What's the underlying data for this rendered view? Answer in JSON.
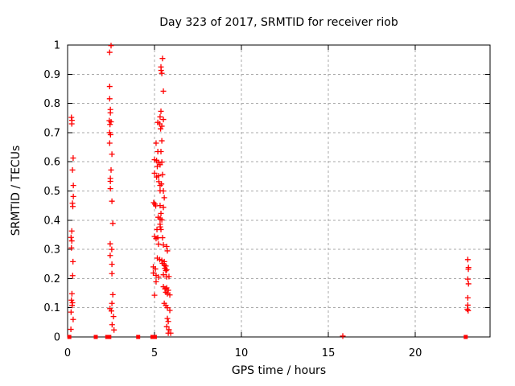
{
  "chart_data": {
    "type": "scatter",
    "title": "Day 323 of 2017, SRMTID for receiver riob",
    "xlabel": "GPS time / hours",
    "ylabel": "SRMTID / TECUs",
    "xlim": [
      0,
      24.3
    ],
    "ylim": [
      0,
      1
    ],
    "xticks": [
      {
        "v": 0,
        "label": "0"
      },
      {
        "v": 5,
        "label": "5"
      },
      {
        "v": 10,
        "label": "10"
      },
      {
        "v": 15,
        "label": "15"
      },
      {
        "v": 20,
        "label": "20"
      }
    ],
    "yticks": [
      {
        "v": 0,
        "label": "0"
      },
      {
        "v": 0.1,
        "label": "0.1"
      },
      {
        "v": 0.2,
        "label": "0.2"
      },
      {
        "v": 0.3,
        "label": "0.3"
      },
      {
        "v": 0.4,
        "label": "0.4"
      },
      {
        "v": 0.5,
        "label": "0.5"
      },
      {
        "v": 0.6,
        "label": "0.6"
      },
      {
        "v": 0.7,
        "label": "0.7"
      },
      {
        "v": 0.8,
        "label": "0.8"
      },
      {
        "v": 0.9,
        "label": "0.9"
      },
      {
        "v": 1,
        "label": "1"
      }
    ],
    "grid": {
      "dashed": true,
      "x_at": [
        5,
        10,
        15,
        20
      ],
      "y_at": [
        0.1,
        0.2,
        0.3,
        0.4,
        0.5,
        0.6,
        0.7,
        0.8,
        0.9
      ]
    },
    "legend": "none",
    "colors": {
      "marker": "#ff0000",
      "axis": "#000000",
      "grid": "#aaaaaa",
      "background": "#ffffff"
    },
    "series": [
      {
        "name": "srmtid-values",
        "marker": "plus",
        "color": "#ff0000",
        "points": [
          [
            0.22,
            0.752
          ],
          [
            0.25,
            0.742
          ],
          [
            0.24,
            0.73
          ],
          [
            0.32,
            0.613
          ],
          [
            0.28,
            0.572
          ],
          [
            0.33,
            0.519
          ],
          [
            0.33,
            0.481
          ],
          [
            0.28,
            0.458
          ],
          [
            0.3,
            0.447
          ],
          [
            0.24,
            0.363
          ],
          [
            0.2,
            0.341
          ],
          [
            0.24,
            0.329
          ],
          [
            0.22,
            0.305
          ],
          [
            0.31,
            0.258
          ],
          [
            0.29,
            0.21
          ],
          [
            0.25,
            0.148
          ],
          [
            0.22,
            0.126
          ],
          [
            0.28,
            0.117
          ],
          [
            0.26,
            0.108
          ],
          [
            0.2,
            0.085
          ],
          [
            0.32,
            0.06
          ],
          [
            0.19,
            0.026
          ],
          [
            2.5,
            0.998
          ],
          [
            2.42,
            0.975
          ],
          [
            2.42,
            0.858
          ],
          [
            2.42,
            0.816
          ],
          [
            2.46,
            0.779
          ],
          [
            2.46,
            0.768
          ],
          [
            2.4,
            0.741
          ],
          [
            2.5,
            0.737
          ],
          [
            2.44,
            0.728
          ],
          [
            2.42,
            0.7
          ],
          [
            2.47,
            0.693
          ],
          [
            2.42,
            0.664
          ],
          [
            2.55,
            0.626
          ],
          [
            2.5,
            0.572
          ],
          [
            2.46,
            0.543
          ],
          [
            2.46,
            0.533
          ],
          [
            2.46,
            0.508
          ],
          [
            2.55,
            0.465
          ],
          [
            2.6,
            0.389
          ],
          [
            2.45,
            0.319
          ],
          [
            2.54,
            0.3
          ],
          [
            2.45,
            0.279
          ],
          [
            2.55,
            0.249
          ],
          [
            2.55,
            0.217
          ],
          [
            2.6,
            0.145
          ],
          [
            2.55,
            0.115
          ],
          [
            2.44,
            0.097
          ],
          [
            2.52,
            0.089
          ],
          [
            2.64,
            0.07
          ],
          [
            2.56,
            0.042
          ],
          [
            2.67,
            0.024
          ],
          [
            5.46,
            0.954
          ],
          [
            5.37,
            0.925
          ],
          [
            5.38,
            0.913
          ],
          [
            5.42,
            0.903
          ],
          [
            5.51,
            0.842
          ],
          [
            5.37,
            0.773
          ],
          [
            5.32,
            0.754
          ],
          [
            5.51,
            0.745
          ],
          [
            5.19,
            0.735
          ],
          [
            5.3,
            0.73
          ],
          [
            5.42,
            0.722
          ],
          [
            5.35,
            0.713
          ],
          [
            5.42,
            0.672
          ],
          [
            5.09,
            0.664
          ],
          [
            5.19,
            0.635
          ],
          [
            5.37,
            0.635
          ],
          [
            5.0,
            0.607
          ],
          [
            5.12,
            0.604
          ],
          [
            5.23,
            0.598
          ],
          [
            5.42,
            0.599
          ],
          [
            5.32,
            0.59
          ],
          [
            5.16,
            0.584
          ],
          [
            5.0,
            0.561
          ],
          [
            5.46,
            0.556
          ],
          [
            5.23,
            0.552
          ],
          [
            5.12,
            0.548
          ],
          [
            5.25,
            0.532
          ],
          [
            5.4,
            0.524
          ],
          [
            5.32,
            0.519
          ],
          [
            5.32,
            0.501
          ],
          [
            5.51,
            0.5
          ],
          [
            5.56,
            0.477
          ],
          [
            4.95,
            0.46
          ],
          [
            5.02,
            0.455
          ],
          [
            5.07,
            0.449
          ],
          [
            5.32,
            0.45
          ],
          [
            5.51,
            0.444
          ],
          [
            5.37,
            0.423
          ],
          [
            5.21,
            0.41
          ],
          [
            5.32,
            0.405
          ],
          [
            5.42,
            0.401
          ],
          [
            5.32,
            0.386
          ],
          [
            5.33,
            0.377
          ],
          [
            5.14,
            0.368
          ],
          [
            5.37,
            0.368
          ],
          [
            5.0,
            0.344
          ],
          [
            5.09,
            0.337
          ],
          [
            5.19,
            0.34
          ],
          [
            5.46,
            0.34
          ],
          [
            5.23,
            0.318
          ],
          [
            5.51,
            0.315
          ],
          [
            5.7,
            0.31
          ],
          [
            5.74,
            0.295
          ],
          [
            5.16,
            0.27
          ],
          [
            5.3,
            0.265
          ],
          [
            5.42,
            0.262
          ],
          [
            5.56,
            0.258
          ],
          [
            5.46,
            0.252
          ],
          [
            5.56,
            0.247
          ],
          [
            5.65,
            0.243
          ],
          [
            5.6,
            0.235
          ],
          [
            5.7,
            0.23
          ],
          [
            5.65,
            0.227
          ],
          [
            4.93,
            0.24
          ],
          [
            5.05,
            0.233
          ],
          [
            4.93,
            0.219
          ],
          [
            5.09,
            0.211
          ],
          [
            5.23,
            0.205
          ],
          [
            5.51,
            0.213
          ],
          [
            5.7,
            0.206
          ],
          [
            5.83,
            0.207
          ],
          [
            5.09,
            0.189
          ],
          [
            5.51,
            0.172
          ],
          [
            5.6,
            0.165
          ],
          [
            5.7,
            0.168
          ],
          [
            5.79,
            0.16
          ],
          [
            5.65,
            0.153
          ],
          [
            5.74,
            0.148
          ],
          [
            5.88,
            0.144
          ],
          [
            5.0,
            0.143
          ],
          [
            5.56,
            0.115
          ],
          [
            5.65,
            0.108
          ],
          [
            5.74,
            0.1
          ],
          [
            5.88,
            0.091
          ],
          [
            5.74,
            0.063
          ],
          [
            5.79,
            0.053
          ],
          [
            5.7,
            0.035
          ],
          [
            5.83,
            0.025
          ],
          [
            5.79,
            0.013
          ],
          [
            5.93,
            0.013
          ],
          [
            15.83,
            0.003
          ],
          [
            23.02,
            0.265
          ],
          [
            23.06,
            0.238
          ],
          [
            23.05,
            0.232
          ],
          [
            23.02,
            0.198
          ],
          [
            23.06,
            0.182
          ],
          [
            23.02,
            0.134
          ],
          [
            23.02,
            0.109
          ],
          [
            22.99,
            0.095
          ],
          [
            23.04,
            0.09
          ]
        ]
      },
      {
        "name": "zero-value-markers",
        "marker": "square",
        "color": "#ff0000",
        "points": [
          [
            0.1,
            0
          ],
          [
            1.62,
            0
          ],
          [
            2.28,
            0
          ],
          [
            2.4,
            0
          ],
          [
            4.06,
            0
          ],
          [
            4.88,
            0
          ],
          [
            5.02,
            0
          ],
          [
            22.9,
            0
          ]
        ]
      }
    ]
  }
}
